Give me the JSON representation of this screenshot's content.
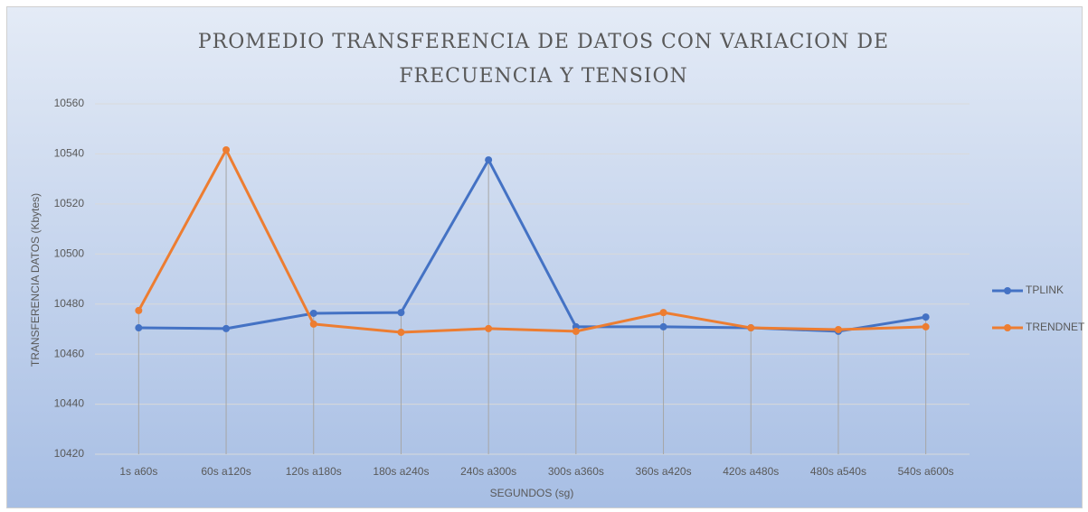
{
  "chart_data": {
    "type": "line",
    "title": "PROMEDIO TRANSFERENCIA DE DATOS CON VARIACION DE FRECUENCIA Y TENSION",
    "x_label": "SEGUNDOS (sg)",
    "y_label": "TRANSFERENCIA DATOS (Kbytes)",
    "categories": [
      "1s a60s",
      "60s a120s",
      "120s a180s",
      "180s a240s",
      "240s a300s",
      "300s a360s",
      "360s a420s",
      "420s a480s",
      "480s a540s",
      "540s a600s"
    ],
    "series": [
      {
        "name": "TPLINK",
        "color": "#4472c4",
        "values": [
          10470.5,
          10470.2,
          10476.3,
          10476.6,
          10537.6,
          10470.9,
          10470.9,
          10470.5,
          10469.1,
          10474.8
        ]
      },
      {
        "name": "TRENDNET",
        "color": "#ed7d31",
        "values": [
          10477.4,
          10541.6,
          10472.0,
          10468.7,
          10470.2,
          10469.1,
          10476.6,
          10470.5,
          10469.8,
          10470.9
        ]
      }
    ],
    "ylim": [
      10420,
      10560
    ],
    "yticks": [
      10420,
      10440,
      10460,
      10480,
      10500,
      10520,
      10540,
      10560
    ],
    "grid": true,
    "legend": "right"
  }
}
